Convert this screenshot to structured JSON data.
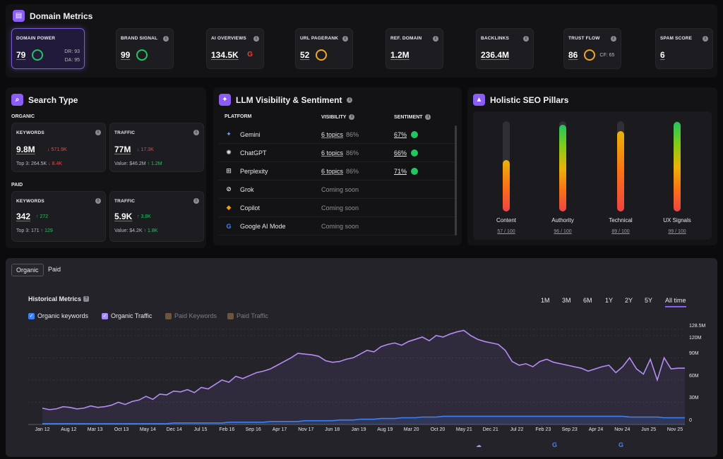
{
  "domain_metrics": {
    "title": "Domain Metrics",
    "icon": "document-icon",
    "cards": [
      {
        "label": "DOMAIN POWER",
        "value": "79",
        "ring": "green",
        "extra1": "DR: 93",
        "extra2": "DA: 95",
        "active": true
      },
      {
        "label": "BRAND SIGNAL",
        "value": "99",
        "ring": "green"
      },
      {
        "label": "AI OVERVIEWS",
        "value": "134.5K",
        "icon": "google-icon"
      },
      {
        "label": "URL PAGERANK",
        "value": "52",
        "ring": "amber"
      },
      {
        "label": "REF. DOMAIN",
        "value": "1.2M"
      },
      {
        "label": "BACKLINKS",
        "value": "236.4M"
      },
      {
        "label": "TRUST FLOW",
        "value": "86",
        "ring": "amber",
        "extra1": "CF: 65"
      },
      {
        "label": "SPAM SCORE",
        "value": "6"
      }
    ]
  },
  "search_type": {
    "title": "Search Type",
    "organic_label": "ORGANIC",
    "paid_label": "PAID",
    "organic": {
      "keywords": {
        "label": "KEYWORDS",
        "value": "9.8M",
        "delta": "571.9K",
        "sub": "Top 3: 264.5K",
        "sub_delta": "8.4K"
      },
      "traffic": {
        "label": "TRAFFIC",
        "value": "77M",
        "delta": "17.3K",
        "sub": "Value: $46.2M",
        "sub_delta": "1.2M"
      }
    },
    "paid": {
      "keywords": {
        "label": "KEYWORDS",
        "value": "342",
        "delta": "272",
        "sub": "Top 3: 171",
        "sub_delta": "129"
      },
      "traffic": {
        "label": "TRAFFIC",
        "value": "5.9K",
        "delta": "3.8K",
        "sub": "Value: $4.2K",
        "sub_delta": "1.8K"
      }
    }
  },
  "llm": {
    "title": "LLM Visibility & Sentiment",
    "col_platform": "PLATFORM",
    "col_visibility": "VISIBILITY",
    "col_sentiment": "SENTIMENT",
    "rows": [
      {
        "name": "Gemini",
        "icon": "gemini-icon",
        "topics": "6 topics",
        "pct": "86%",
        "sentiment": "67%"
      },
      {
        "name": "ChatGPT",
        "icon": "chatgpt-icon",
        "topics": "6 topics",
        "pct": "86%",
        "sentiment": "66%"
      },
      {
        "name": "Perplexity",
        "icon": "perplexity-icon",
        "topics": "6 topics",
        "pct": "86%",
        "sentiment": "71%"
      },
      {
        "name": "Grok",
        "icon": "grok-icon",
        "soon": "Coming soon"
      },
      {
        "name": "Copilot",
        "icon": "copilot-icon",
        "soon": "Coming soon"
      },
      {
        "name": "Google AI Mode",
        "icon": "google-icon",
        "soon": "Coming soon"
      }
    ]
  },
  "pillars": {
    "title": "Holistic SEO Pillars",
    "items": [
      {
        "label": "Content",
        "score": "57 / 100",
        "value": 57
      },
      {
        "label": "Authority",
        "score": "96 / 100",
        "value": 96
      },
      {
        "label": "Technical",
        "score": "89 / 100",
        "value": 89
      },
      {
        "label": "UX Signals",
        "score": "99 / 100",
        "value": 99
      }
    ]
  },
  "history": {
    "tabs": [
      "Organic",
      "Paid"
    ],
    "title": "Historical Metrics",
    "ranges": [
      "1M",
      "3M",
      "6M",
      "1Y",
      "2Y",
      "5Y",
      "All time"
    ],
    "legend": [
      "Organic keywords",
      "Organic Traffic",
      "Paid Keywords",
      "Paid Traffic"
    ],
    "colors": {
      "keywords": "#3b82f6",
      "traffic": "#b48cf2",
      "paid": "#8a6a4a"
    }
  },
  "chart_data": {
    "type": "line",
    "x_ticks": [
      "Jan 12",
      "Aug 12",
      "Mar 13",
      "Oct 13",
      "May 14",
      "Dec 14",
      "Jul 15",
      "Feb 16",
      "Sep 16",
      "Apr 17",
      "Nov 17",
      "Jun 18",
      "Jan 19",
      "Aug 19",
      "Mar 20",
      "Oct 20",
      "May 21",
      "Dec 21",
      "Jul 22",
      "Feb 23",
      "Sep 23",
      "Apr 24",
      "Nov 24",
      "Jun 25",
      "Nov 25"
    ],
    "y_ticks": [
      "128.5M",
      "120M",
      "90M",
      "60M",
      "30M",
      "0"
    ],
    "ylim": [
      0,
      128.5
    ],
    "series": [
      {
        "name": "Organic Traffic",
        "values": [
          22,
          20,
          21,
          24,
          23,
          21,
          22,
          25,
          23,
          24,
          26,
          30,
          27,
          31,
          33,
          38,
          34,
          41,
          40,
          45,
          44,
          47,
          43,
          50,
          48,
          54,
          60,
          57,
          65,
          62,
          66,
          70,
          72,
          75,
          80,
          85,
          90,
          96,
          95,
          94,
          92,
          86,
          84,
          85,
          88,
          90,
          95,
          100,
          98,
          105,
          108,
          110,
          107,
          112,
          115,
          118,
          113,
          120,
          118,
          122,
          125,
          127,
          120,
          115,
          112,
          110,
          108,
          100,
          85,
          80,
          82,
          78,
          85,
          88,
          84,
          82,
          80,
          78,
          76,
          72,
          75,
          78,
          80,
          70,
          78,
          90,
          75,
          68,
          88,
          60,
          90,
          75,
          76,
          76
        ]
      },
      {
        "name": "Organic keywords",
        "values": [
          1,
          1,
          1,
          1,
          1,
          1,
          1,
          1,
          1,
          1,
          1,
          1,
          1,
          1,
          1,
          1,
          1,
          1,
          1,
          2,
          2,
          2,
          2,
          2,
          2,
          2,
          2,
          3,
          3,
          3,
          3,
          3,
          3,
          4,
          4,
          4,
          4,
          4,
          5,
          5,
          5,
          5,
          5,
          6,
          6,
          6,
          7,
          7,
          7,
          8,
          8,
          8,
          9,
          9,
          9,
          10,
          10,
          10,
          11,
          11,
          11,
          11,
          11,
          11,
          11,
          11,
          11,
          11,
          11,
          11,
          11,
          11,
          11,
          11,
          11,
          11,
          11,
          11,
          11,
          11,
          11,
          11,
          11,
          11,
          11,
          10,
          10,
          10,
          10,
          10,
          9,
          9,
          9,
          9
        ]
      }
    ]
  }
}
